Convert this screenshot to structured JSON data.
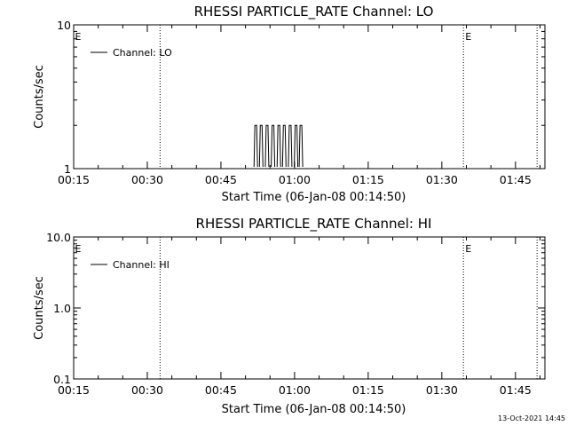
{
  "chart_data": [
    {
      "type": "line",
      "title": "RHESSI PARTICLE_RATE Channel: LO",
      "xlabel": "Start Time (06-Jan-08 00:14:50)",
      "ylabel": "Counts/sec",
      "y_scale": "log",
      "xlim_minutes": [
        15,
        111
      ],
      "ylim": [
        1,
        10
      ],
      "x_tick_labels": [
        "00:15",
        "00:30",
        "00:45",
        "01:00",
        "01:15",
        "01:30",
        "01:45"
      ],
      "y_tick_labels": [
        "1",
        "10"
      ],
      "y_tick_values": [
        1,
        10
      ],
      "minor_y_ticks": [
        2,
        3,
        4,
        5,
        6,
        7,
        8,
        9
      ],
      "vertical_markers_minutes": [
        32.6,
        94.4,
        109.4
      ],
      "event_flags": [
        {
          "text": "E",
          "x_minutes": 15.1
        },
        {
          "text": "E",
          "x_minutes": 94.6
        }
      ],
      "legend": {
        "label": "Channel: LO",
        "position": "top-left"
      },
      "series": [
        {
          "name": "Channel: LO",
          "spikes_minutes": [
            52.1,
            53.2,
            54.4,
            55.6,
            56.8,
            57.9,
            59.1,
            60.3,
            61.3
          ],
          "spike_peak": 2,
          "baseline": 1
        }
      ]
    },
    {
      "type": "line",
      "title": "RHESSI PARTICLE_RATE Channel: HI",
      "xlabel": "Start Time (06-Jan-08 00:14:50)",
      "ylabel": "Counts/sec",
      "y_scale": "log",
      "xlim_minutes": [
        15,
        111
      ],
      "ylim": [
        0.1,
        10
      ],
      "x_tick_labels": [
        "00:15",
        "00:30",
        "00:45",
        "01:00",
        "01:15",
        "01:30",
        "01:45"
      ],
      "y_tick_labels": [
        "0.1",
        "1.0",
        "10.0"
      ],
      "y_tick_values": [
        0.1,
        1,
        10
      ],
      "minor_y_ticks": [
        0.2,
        0.3,
        0.4,
        0.5,
        0.6,
        0.7,
        0.8,
        0.9,
        2,
        3,
        4,
        5,
        6,
        7,
        8,
        9
      ],
      "vertical_markers_minutes": [
        32.6,
        94.4,
        109.4
      ],
      "event_flags": [
        {
          "text": "E",
          "x_minutes": 15.1
        },
        {
          "text": "E",
          "x_minutes": 94.6
        }
      ],
      "legend": {
        "label": "Channel: HI",
        "position": "top-left"
      },
      "series": [
        {
          "name": "Channel: HI",
          "spikes_minutes": [],
          "spike_peak": 0,
          "baseline": 0
        }
      ]
    }
  ],
  "footer": {
    "timestamp": "13-Oct-2021 14:45"
  }
}
